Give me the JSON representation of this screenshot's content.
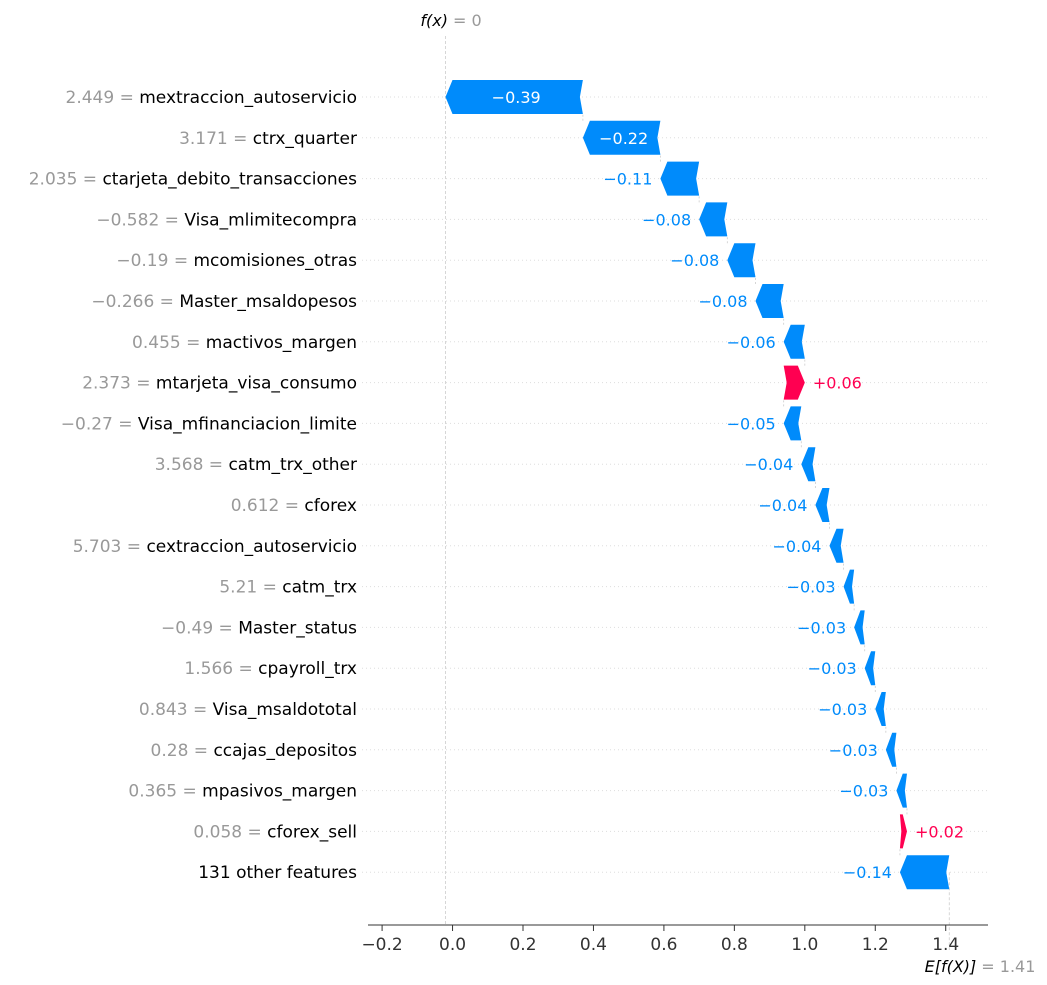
{
  "chart_data": {
    "type": "waterfall",
    "fx_label": "f(x)",
    "fx_value": "0",
    "base_label": "E[f(X)]",
    "base_value": 1.41,
    "base_value_text": "1.41",
    "xlim": [
      -0.24,
      1.52
    ],
    "x_ticks": [
      -0.2,
      0.0,
      0.2,
      0.4,
      0.6,
      0.8,
      1.0,
      1.2,
      1.4
    ],
    "x_tick_labels": [
      "−0.2",
      "0.0",
      "0.2",
      "0.4",
      "0.6",
      "0.8",
      "1.0",
      "1.2",
      "1.4"
    ],
    "features": [
      {
        "value": "2.449",
        "name": "mextraccion_autoservicio",
        "shap": -0.39,
        "label": "−0.39"
      },
      {
        "value": "3.171",
        "name": "ctrx_quarter",
        "shap": -0.22,
        "label": "−0.22"
      },
      {
        "value": "2.035",
        "name": "ctarjeta_debito_transacciones",
        "shap": -0.11,
        "label": "−0.11"
      },
      {
        "value": "−0.582",
        "name": "Visa_mlimitecompra",
        "shap": -0.08,
        "label": "−0.08"
      },
      {
        "value": "−0.19",
        "name": "mcomisiones_otras",
        "shap": -0.08,
        "label": "−0.08"
      },
      {
        "value": "−0.266",
        "name": "Master_msaldopesos",
        "shap": -0.08,
        "label": "−0.08"
      },
      {
        "value": "0.455",
        "name": "mactivos_margen",
        "shap": -0.06,
        "label": "−0.06"
      },
      {
        "value": "2.373",
        "name": "mtarjeta_visa_consumo",
        "shap": 0.06,
        "label": "+0.06"
      },
      {
        "value": "−0.27",
        "name": "Visa_mfinanciacion_limite",
        "shap": -0.05,
        "label": "−0.05"
      },
      {
        "value": "3.568",
        "name": "catm_trx_other",
        "shap": -0.04,
        "label": "−0.04"
      },
      {
        "value": "0.612",
        "name": "cforex",
        "shap": -0.04,
        "label": "−0.04"
      },
      {
        "value": "5.703",
        "name": "cextraccion_autoservicio",
        "shap": -0.04,
        "label": "−0.04"
      },
      {
        "value": "5.21",
        "name": "catm_trx",
        "shap": -0.03,
        "label": "−0.03"
      },
      {
        "value": "−0.49",
        "name": "Master_status",
        "shap": -0.03,
        "label": "−0.03"
      },
      {
        "value": "1.566",
        "name": "cpayroll_trx",
        "shap": -0.03,
        "label": "−0.03"
      },
      {
        "value": "0.843",
        "name": "Visa_msaldototal",
        "shap": -0.03,
        "label": "−0.03"
      },
      {
        "value": "0.28",
        "name": "ccajas_depositos",
        "shap": -0.03,
        "label": "−0.03"
      },
      {
        "value": "0.365",
        "name": "mpasivos_margen",
        "shap": -0.03,
        "label": "−0.03"
      },
      {
        "value": "0.058",
        "name": "cforex_sell",
        "shap": 0.02,
        "label": "+0.02"
      },
      {
        "value": "",
        "name": "131 other features",
        "shap": -0.14,
        "label": "−0.14"
      }
    ],
    "colors": {
      "negative": "#008bfb",
      "positive": "#ff0051",
      "axis": "#333333",
      "muted": "#999999",
      "grid": "#cccccc"
    }
  }
}
